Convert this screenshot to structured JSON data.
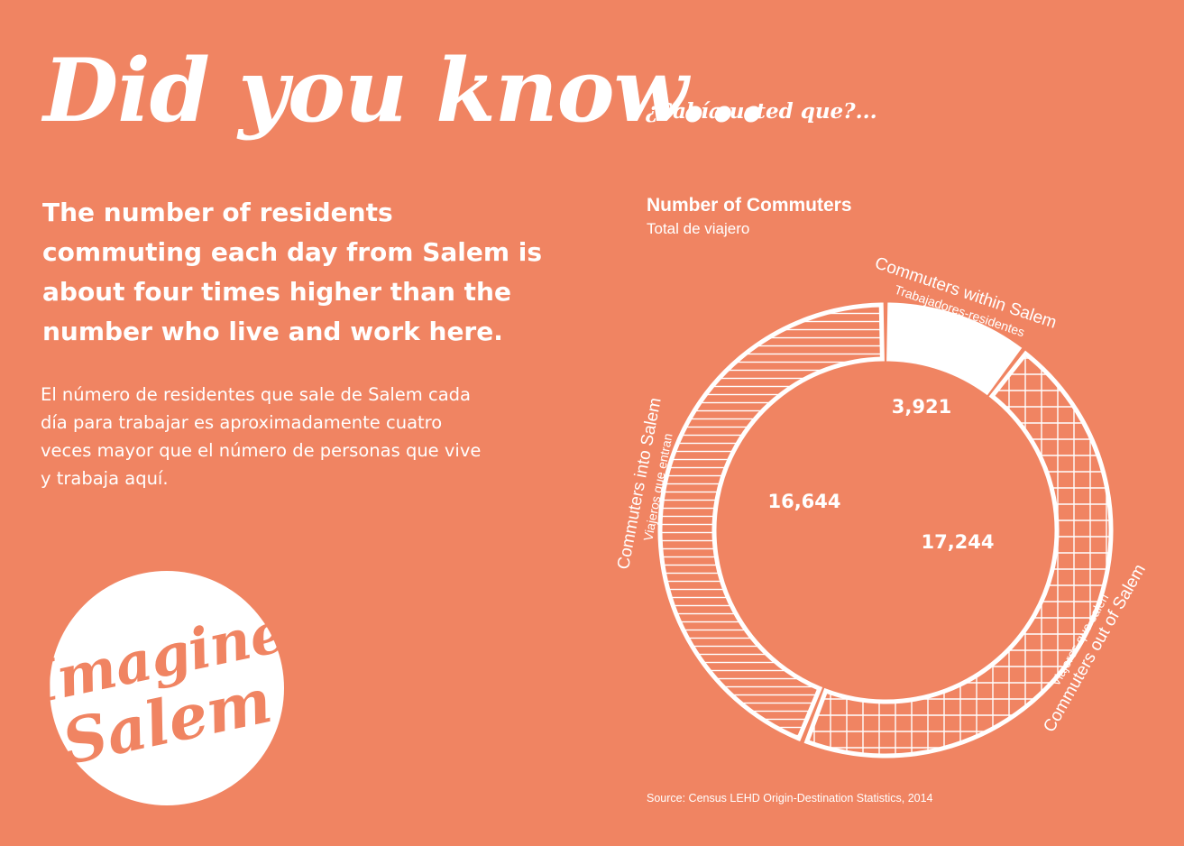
{
  "header": {
    "headline": "Did you know...",
    "headline_es": "¿Sabía usted que?..."
  },
  "fact": {
    "english_lines": [
      "The number of residents",
      "commuting each day from Salem is",
      "about four times higher than the",
      "number who live and work here."
    ],
    "spanish_lines": [
      "El número de residentes que sale de Salem cada",
      "día para trabajar es aproximadamente cuatro",
      "veces mayor que el número de personas que vive",
      "y trabaja aquí."
    ]
  },
  "logo": {
    "line1": "Imagine",
    "line2": "Salem"
  },
  "chart_data": {
    "type": "pie",
    "title": "Number of Commuters",
    "subtitle": "Total de viajero",
    "series": [
      {
        "name": "Commuters within Salem",
        "name_es": "Trabajadores-residentes",
        "value": 3921,
        "value_label": "3,921",
        "pattern": "solid"
      },
      {
        "name": "Commuters out of Salem",
        "name_es": "Viajeros que salen",
        "value": 17244,
        "value_label": "17,244",
        "pattern": "grid"
      },
      {
        "name": "Commuters into Salem",
        "name_es": "Viajeros que entran",
        "value": 16644,
        "value_label": "16,644",
        "pattern": "horizontal-lines"
      }
    ],
    "source": "Source: Census LEHD Origin-Destination Statistics, 2014"
  },
  "colors": {
    "background": "#f08462",
    "foreground": "#ffffff"
  }
}
